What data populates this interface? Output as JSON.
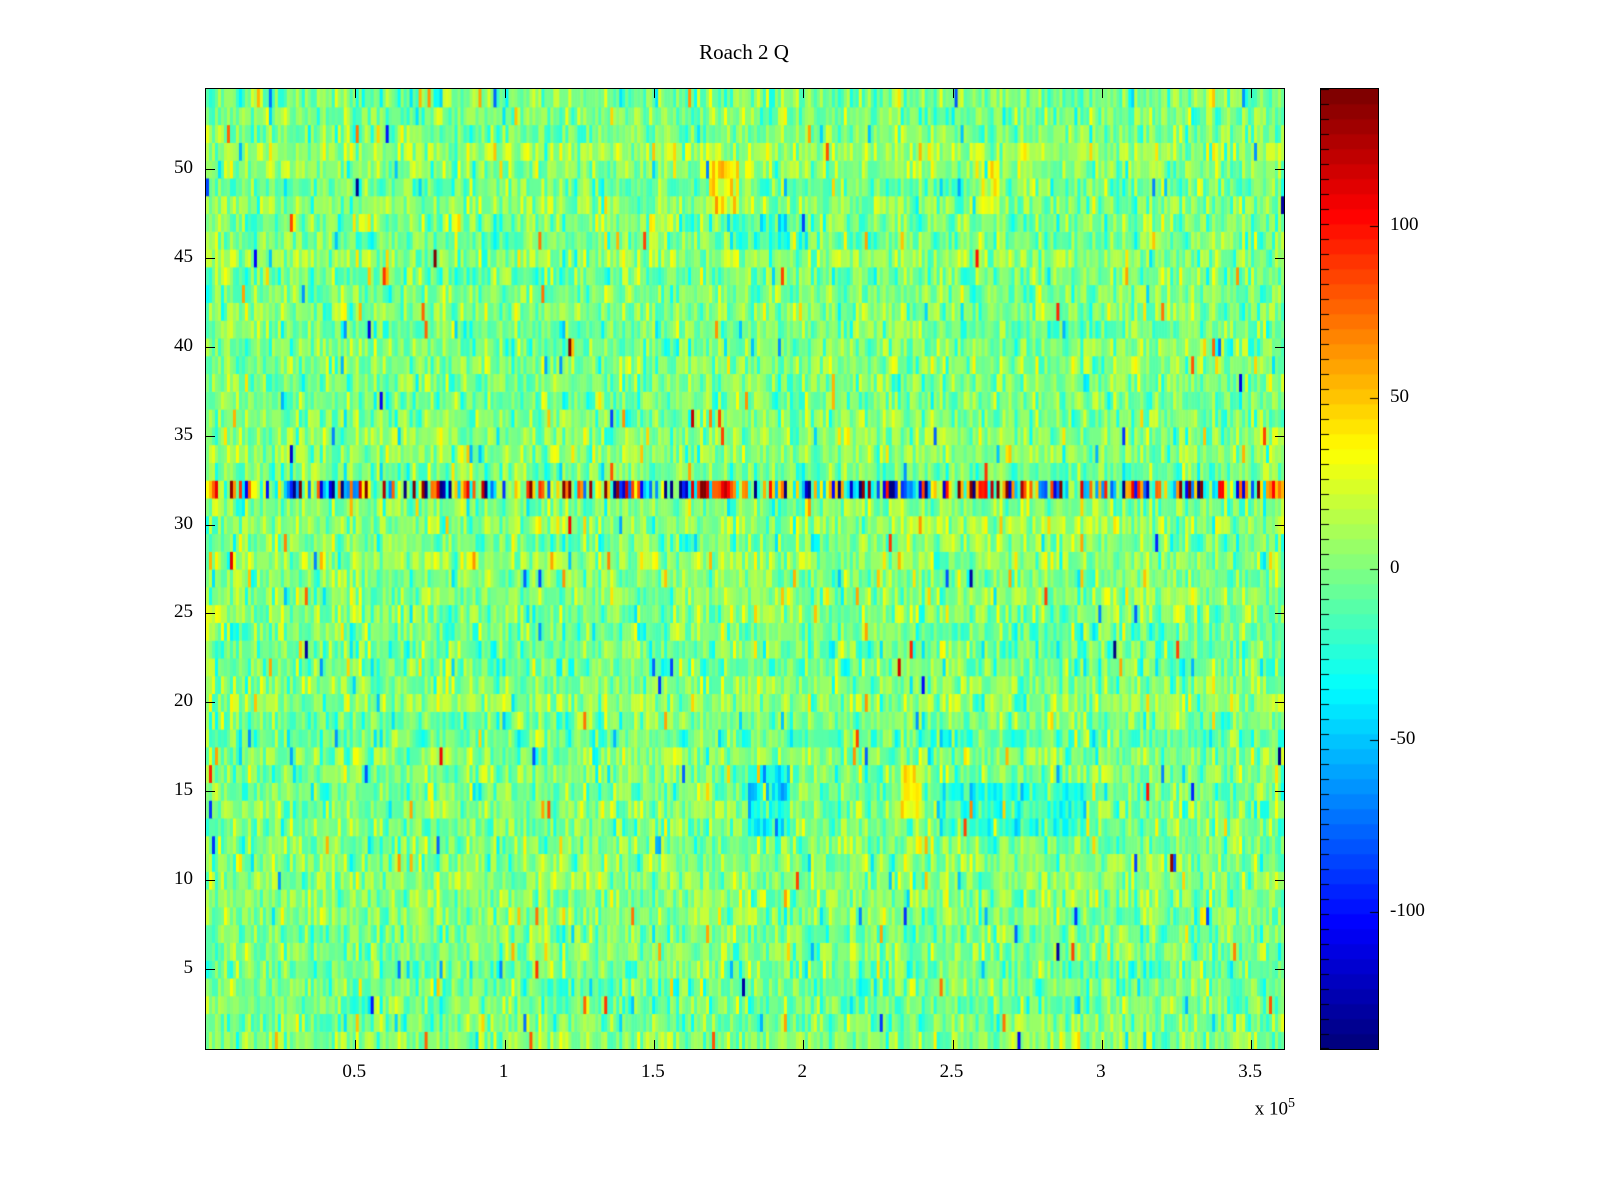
{
  "title": "Roach 2 Q",
  "chart_data": {
    "type": "heatmap",
    "title": "Roach 2 Q",
    "xlabel": "",
    "ylabel": "",
    "xlim": [
      0,
      361000
    ],
    "ylim": [
      0.5,
      54.5
    ],
    "x_ticks": [
      50000,
      100000,
      150000,
      200000,
      250000,
      300000,
      350000
    ],
    "x_tick_labels": [
      "0.5",
      "1",
      "1.5",
      "2",
      "2.5",
      "3",
      "3.5"
    ],
    "x_exponent": {
      "prefix": "x 10",
      "exp": "5"
    },
    "y_ticks": [
      5,
      10,
      15,
      20,
      25,
      30,
      35,
      40,
      45,
      50
    ],
    "y_tick_labels": [
      "5",
      "10",
      "15",
      "20",
      "25",
      "30",
      "35",
      "40",
      "45",
      "50"
    ],
    "colormap": "jet",
    "colormap_levels": 64,
    "clim": [
      -140,
      140
    ],
    "colorbar_ticks": [
      -100,
      -50,
      0,
      50,
      100
    ],
    "colorbar_tick_labels": [
      "-100",
      "-50",
      "0",
      "50",
      "100"
    ],
    "legend": "colorbar-right",
    "grid": {
      "rows": 54,
      "cols": 360
    },
    "noise": {
      "seed": 1337,
      "std": 15,
      "row_bias_std": 3.5,
      "tail_prob": 0.035,
      "tail_scale": 3.2
    },
    "row_effects": [
      {
        "row": 32,
        "std": 70,
        "tail_prob": 0.25,
        "tail_scale": 1.8
      }
    ],
    "features": [
      {
        "x": [
          0,
          6000
        ],
        "y": [
          31.5,
          32.5
        ],
        "bias": 55
      },
      {
        "x": [
          105000,
          125000
        ],
        "y": [
          31.5,
          32.5
        ],
        "bias": 55
      },
      {
        "x": [
          148000,
          162000
        ],
        "y": [
          31.5,
          32.5
        ],
        "bias": -70
      },
      {
        "x": [
          163000,
          182000
        ],
        "y": [
          31.5,
          32.5
        ],
        "bias": 50
      },
      {
        "x": [
          225000,
          245000
        ],
        "y": [
          31.5,
          32.5
        ],
        "bias": -55
      },
      {
        "x": [
          252000,
          278000
        ],
        "y": [
          31.5,
          32.5
        ],
        "bias": 85
      },
      {
        "x": [
          350000,
          361000
        ],
        "y": [
          31.5,
          32.5
        ],
        "bias": 65
      },
      {
        "x": [
          182000,
          196000
        ],
        "y": [
          12.5,
          16.5
        ],
        "bias": -35
      },
      {
        "x": [
          245000,
          295000
        ],
        "y": [
          12.5,
          15.5
        ],
        "bias": -20
      },
      {
        "x": [
          233000,
          240000
        ],
        "y": [
          13.5,
          16.5
        ],
        "bias": 32
      },
      {
        "x": [
          168000,
          178000
        ],
        "y": [
          47.8,
          50.5
        ],
        "bias": 38
      },
      {
        "x": [
          258000,
          266000
        ],
        "y": [
          48.0,
          50.0
        ],
        "bias": 28
      },
      {
        "x": [
          175000,
          200000
        ],
        "y": [
          45.5,
          47.5
        ],
        "bias": -16
      },
      {
        "x": [
          230000,
          310000
        ],
        "y": [
          28.8,
          30.2
        ],
        "bias": 10
      }
    ]
  }
}
